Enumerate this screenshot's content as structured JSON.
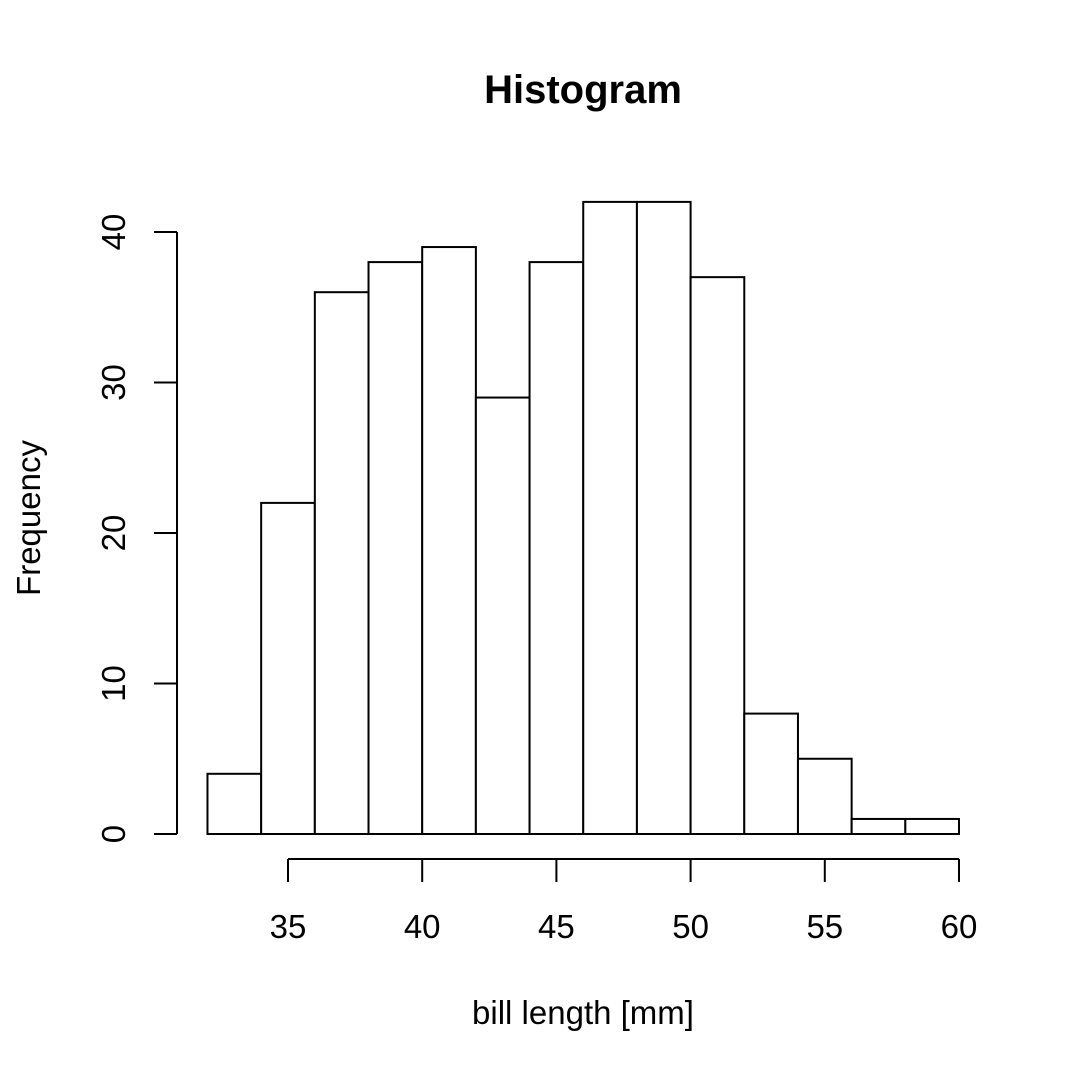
{
  "chart_data": {
    "type": "bar",
    "title": "Histogram",
    "xlabel": "bill length [mm]",
    "ylabel": "Frequency",
    "bins": [
      {
        "x0": 32,
        "x1": 34,
        "count": 4
      },
      {
        "x0": 34,
        "x1": 36,
        "count": 22
      },
      {
        "x0": 36,
        "x1": 38,
        "count": 36
      },
      {
        "x0": 38,
        "x1": 40,
        "count": 38
      },
      {
        "x0": 40,
        "x1": 42,
        "count": 39
      },
      {
        "x0": 42,
        "x1": 44,
        "count": 29
      },
      {
        "x0": 44,
        "x1": 46,
        "count": 38
      },
      {
        "x0": 46,
        "x1": 48,
        "count": 42
      },
      {
        "x0": 48,
        "x1": 50,
        "count": 42
      },
      {
        "x0": 50,
        "x1": 52,
        "count": 37
      },
      {
        "x0": 52,
        "x1": 54,
        "count": 8
      },
      {
        "x0": 54,
        "x1": 56,
        "count": 5
      },
      {
        "x0": 56,
        "x1": 58,
        "count": 1
      },
      {
        "x0": 58,
        "x1": 60,
        "count": 1
      }
    ],
    "xticks": [
      35,
      40,
      45,
      50,
      55,
      60
    ],
    "yticks": [
      0,
      10,
      20,
      30,
      40
    ],
    "xlim": [
      32,
      60
    ],
    "ylim": [
      0,
      40
    ],
    "grid": false,
    "fill_color": "#ffffff",
    "stroke_color": "#000000"
  }
}
